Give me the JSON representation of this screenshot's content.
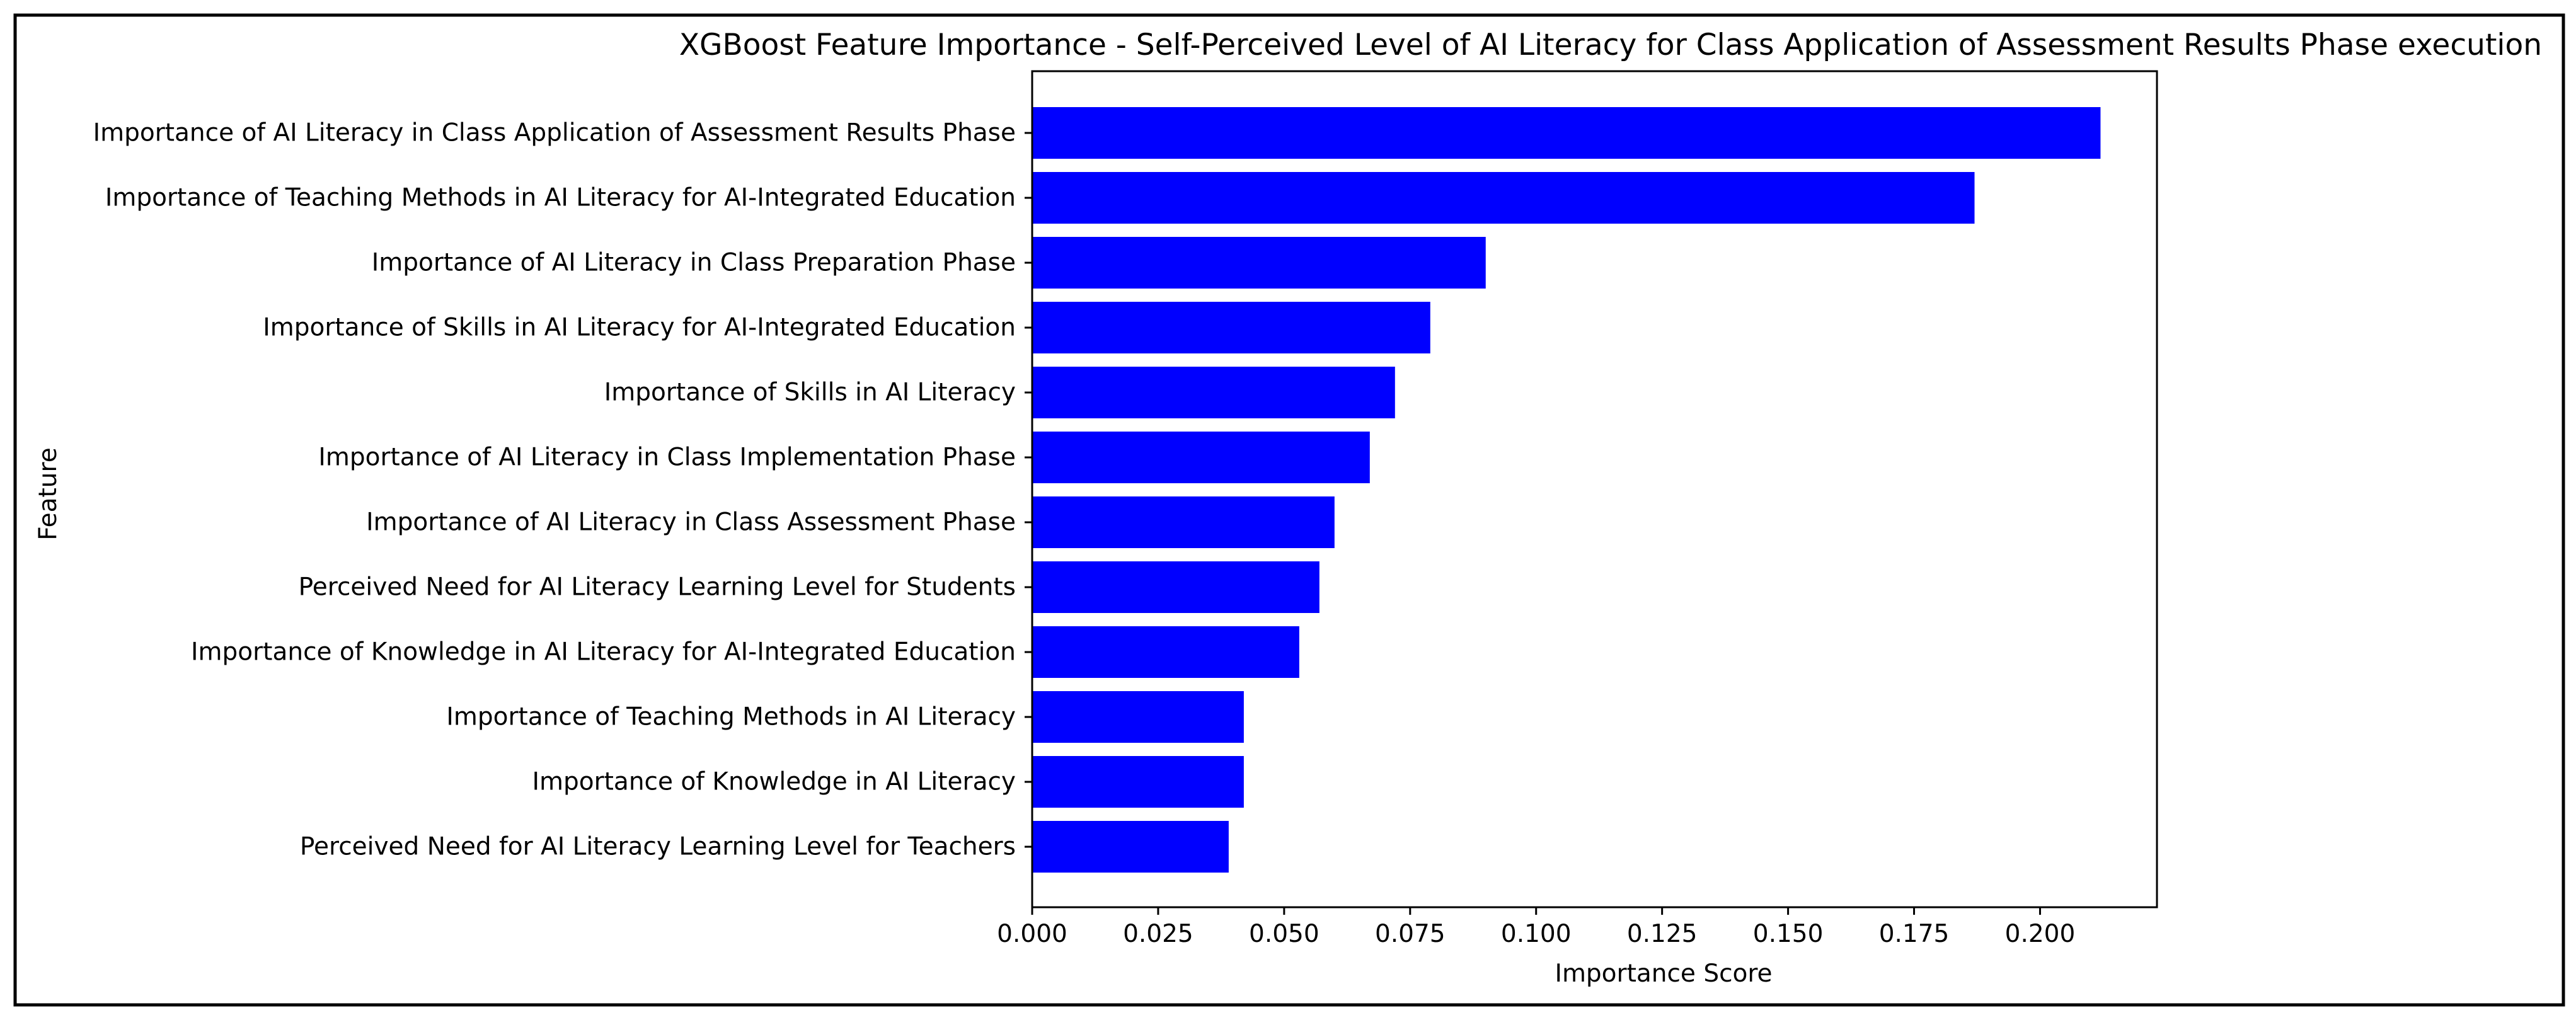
{
  "chart_data": {
    "type": "bar",
    "orientation": "horizontal",
    "title": "XGBoost Feature Importance - Self-Perceived Level of AI Literacy for Class Application of Assessment Results Phase execution",
    "xlabel": "Importance Score",
    "ylabel": "Feature",
    "xlim": [
      0,
      0.2232
    ],
    "xticks": [
      0.0,
      0.025,
      0.05,
      0.075,
      0.1,
      0.125,
      0.15,
      0.175,
      0.2
    ],
    "xtick_labels": [
      "0.000",
      "0.025",
      "0.050",
      "0.075",
      "0.100",
      "0.125",
      "0.150",
      "0.175",
      "0.200"
    ],
    "grid": false,
    "legend": false,
    "bar_color": "#0000ff",
    "categories": [
      "Importance of AI Literacy in Class Application of Assessment Results Phase",
      "Importance of Teaching Methods in AI Literacy for AI-Integrated Education",
      "Importance of AI Literacy in Class Preparation Phase",
      "Importance of Skills in AI Literacy for AI-Integrated Education",
      "Importance of Skills in AI Literacy",
      "Importance of AI Literacy in Class Implementation Phase",
      "Importance of AI Literacy in Class Assessment Phase",
      "Perceived Need for AI Literacy Learning Level for Students",
      "Importance of Knowledge in AI Literacy for AI-Integrated Education",
      "Importance of Teaching Methods in AI Literacy",
      "Importance of Knowledge in AI Literacy",
      "Perceived Need for AI Literacy Learning Level for Teachers"
    ],
    "values": [
      0.212,
      0.187,
      0.09,
      0.079,
      0.072,
      0.067,
      0.06,
      0.057,
      0.053,
      0.042,
      0.042,
      0.039
    ]
  }
}
